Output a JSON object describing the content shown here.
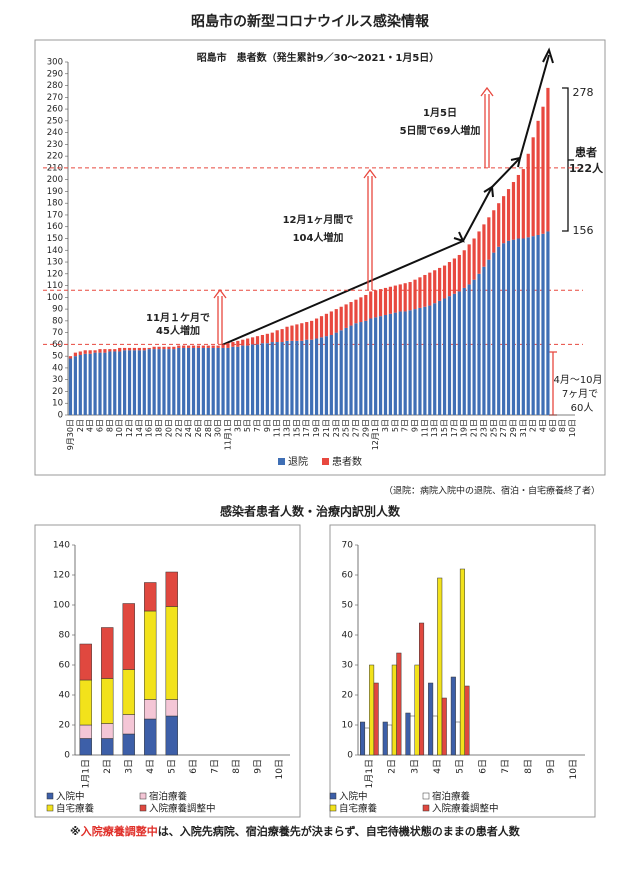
{
  "page": {
    "title": "昭島市の新型コロナウイルス感染情報",
    "definition": "（退院：病院入院中の退院、宿泊・自宅療養終了者）",
    "section_title": "感染者患者人数・治療内訳別人数",
    "note_mark": "※",
    "note_highlight": "入院療養調整中",
    "note_rest": "は、入院先病院、宿泊療養先が決まらず、自宅待機状態のままの患者人数"
  },
  "chart_data": [
    {
      "type": "bar",
      "stacked": true,
      "subtitle": "昭島市　患者数（発生累計9／30〜2021・1月5日）",
      "categories": [
        "9月30日",
        null,
        "2日",
        null,
        "4日",
        null,
        "6日",
        null,
        "8日",
        null,
        "10日",
        null,
        "12日",
        null,
        "14日",
        null,
        "16日",
        null,
        "18日",
        null,
        "20日",
        null,
        "22日",
        null,
        "24日",
        null,
        "26日",
        null,
        "28日",
        null,
        "30日",
        null,
        "11月1日",
        null,
        "3日",
        null,
        "5日",
        null,
        "7日",
        null,
        "9日",
        null,
        "11日",
        null,
        "13日",
        null,
        "15日",
        null,
        "17日",
        null,
        "19日",
        null,
        "21日",
        null,
        "23日",
        null,
        "25日",
        null,
        "27日",
        null,
        "29日",
        null,
        "12月1日",
        null,
        "3日",
        null,
        "5日",
        null,
        "7日",
        null,
        "9日",
        null,
        "11日",
        null,
        "13日",
        null,
        "15日",
        null,
        "17日",
        null,
        "19日",
        null,
        "21日",
        null,
        "23日",
        null,
        "25日",
        null,
        "27日",
        null,
        "29日",
        null,
        "31日",
        null,
        "2日",
        null,
        "4日",
        null,
        "6日",
        null,
        "8日",
        null,
        "10日"
      ],
      "series": [
        {
          "name": "退院",
          "color": "#3f6fb5",
          "values": [
            48,
            50,
            51,
            52,
            52,
            53,
            53,
            53,
            54,
            54,
            54,
            55,
            55,
            55,
            55,
            55,
            56,
            56,
            56,
            56,
            56,
            56,
            57,
            57,
            57,
            57,
            57,
            57,
            57,
            57,
            57,
            57,
            57,
            58,
            58,
            59,
            59,
            60,
            60,
            61,
            61,
            62,
            62,
            62,
            63,
            63,
            63,
            63,
            64,
            64,
            65,
            66,
            67,
            68,
            70,
            72,
            74,
            76,
            78,
            79,
            80,
            82,
            83,
            84,
            85,
            86,
            87,
            88,
            88,
            89,
            90,
            91,
            92,
            93,
            95,
            97,
            99,
            101,
            103,
            105,
            108,
            111,
            115,
            120,
            126,
            132,
            138,
            143,
            146,
            148,
            149,
            150,
            150,
            151,
            152,
            153,
            154,
            156,
            null,
            null,
            null,
            null,
            null
          ]
        },
        {
          "name": "患者数",
          "color": "#e8483f",
          "values": [
            2,
            3,
            3,
            3,
            3,
            2,
            3,
            3,
            2,
            2,
            3,
            2,
            2,
            2,
            2,
            2,
            1,
            2,
            2,
            2,
            2,
            2,
            2,
            2,
            2,
            2,
            2,
            2,
            2,
            2,
            2,
            3,
            4,
            4,
            5,
            5,
            6,
            6,
            7,
            7,
            8,
            8,
            10,
            11,
            12,
            13,
            14,
            15,
            15,
            16,
            17,
            18,
            19,
            20,
            20,
            20,
            20,
            20,
            20,
            21,
            22,
            23,
            23,
            23,
            23,
            23,
            23,
            23,
            24,
            24,
            25,
            26,
            27,
            28,
            28,
            28,
            28,
            29,
            30,
            31,
            32,
            34,
            35,
            36,
            36,
            36,
            36,
            37,
            40,
            44,
            49,
            54,
            59,
            71,
            84,
            97,
            108,
            122,
            null,
            null,
            null,
            null,
            null
          ]
        }
      ],
      "ylim": [
        0,
        300
      ],
      "yticks": [
        0,
        10,
        20,
        30,
        40,
        50,
        60,
        70,
        80,
        90,
        100,
        110,
        120,
        130,
        140,
        150,
        160,
        170,
        180,
        190,
        200,
        210,
        220,
        230,
        240,
        250,
        260,
        270,
        280,
        290,
        300
      ],
      "reference_lines": [
        60,
        106,
        210
      ],
      "reference_color": "#e8483f",
      "legend": "bottom",
      "annotations": [
        {
          "text": "11月１ケ月で",
          "color": "#c0302a"
        },
        {
          "text": "45人増加",
          "color": "#c0302a"
        },
        {
          "text": "12月1ヶ月間で",
          "color": "#c0302a"
        },
        {
          "text": "104人増加",
          "color": "#c0302a"
        },
        {
          "text": "1月5日",
          "color": "#e8483f"
        },
        {
          "text": "5日間で69人増加",
          "color": "#e8483f"
        },
        {
          "text": "患者",
          "color": "#e8483f"
        },
        {
          "text": "122人",
          "color": "#e8483f"
        },
        {
          "text": "278",
          "color": "#111"
        },
        {
          "text": "156",
          "color": "#111"
        },
        {
          "text": "4月〜10月",
          "color": "#111"
        },
        {
          "text": "7ヶ月で",
          "color": "#111"
        },
        {
          "text": "60人",
          "color": "#111"
        }
      ]
    },
    {
      "type": "bar",
      "stacked": true,
      "categories": [
        "1月1日",
        "2日",
        "3日",
        "4日",
        "5日",
        "6日",
        "7日",
        "8日",
        "9日",
        "10日"
      ],
      "series": [
        {
          "name": "入院中",
          "color": "#3d5fa8",
          "values": [
            11,
            11,
            14,
            24,
            26,
            null,
            null,
            null,
            null,
            null
          ]
        },
        {
          "name": "宿泊療養",
          "color": "#f4c6d6",
          "values": [
            9,
            10,
            13,
            13,
            11,
            null,
            null,
            null,
            null,
            null
          ]
        },
        {
          "name": "自宅療養",
          "color": "#f2e21b",
          "values": [
            30,
            30,
            30,
            59,
            62,
            null,
            null,
            null,
            null,
            null
          ]
        },
        {
          "name": "入院療養調整中",
          "color": "#e0483f",
          "values": [
            24,
            34,
            44,
            19,
            23,
            null,
            null,
            null,
            null,
            null
          ]
        }
      ],
      "ylim": [
        0,
        140
      ],
      "yticks": [
        0,
        20,
        40,
        60,
        80,
        100,
        120,
        140
      ],
      "legend": "bottom"
    },
    {
      "type": "bar",
      "stacked": false,
      "categories": [
        "1月1日",
        "2日",
        "3日",
        "4日",
        "5日",
        "6日",
        "7日",
        "8日",
        "9日",
        "10日"
      ],
      "series": [
        {
          "name": "入院中",
          "color": "#3d5fa8",
          "values": [
            11,
            11,
            14,
            24,
            26,
            null,
            null,
            null,
            null,
            null
          ]
        },
        {
          "name": "宿泊療養",
          "color": "#ffffff",
          "values": [
            9,
            10,
            13,
            13,
            11,
            null,
            null,
            null,
            null,
            null
          ]
        },
        {
          "name": "自宅療養",
          "color": "#f2e21b",
          "values": [
            30,
            30,
            30,
            59,
            62,
            null,
            null,
            null,
            null,
            null
          ]
        },
        {
          "name": "入院療養調整中",
          "color": "#e0483f",
          "values": [
            24,
            34,
            44,
            19,
            23,
            null,
            null,
            null,
            null,
            null
          ]
        }
      ],
      "ylim": [
        0,
        70
      ],
      "yticks": [
        0,
        10,
        20,
        30,
        40,
        50,
        60,
        70
      ],
      "legend": "bottom"
    }
  ]
}
